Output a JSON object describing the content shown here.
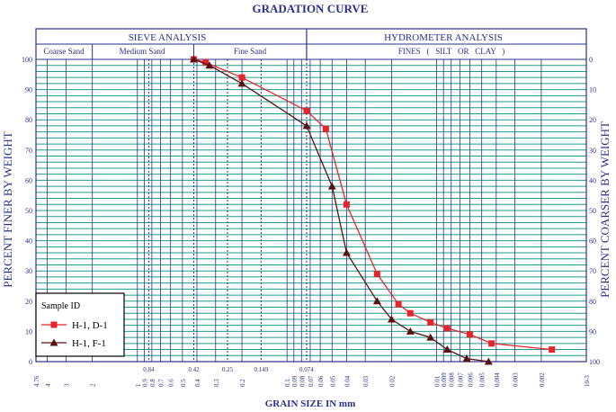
{
  "chart_data": {
    "type": "line",
    "title": "GRADATION CURVE",
    "xlabel": "GRAIN SIZE IN mm",
    "ylabel": "PERCENT FINER BY WEIGHT",
    "ylabel_right": "PERCENT COARSER BY WEIGHT",
    "x_scale": "log",
    "x_reversed": true,
    "xlim": [
      4.76,
      0.001
    ],
    "ylim": [
      0,
      100
    ],
    "grid": true,
    "legend_position": "bottom-left",
    "legend_title": "Sample ID",
    "header": {
      "sieve_title": "SIEVE ANALYSIS",
      "hydrometer_title": "HYDROMETER ANALYSIS",
      "coarse_sand": "Coarse Sand",
      "medium_sand": "Medium Sand",
      "fine_sand": "Fine Sand",
      "fines": "FINES   (   SILT   OR   CLAY   )"
    },
    "x_tick_labels": [
      "4.76",
      "4",
      "3",
      "2",
      "1",
      "0.9",
      "0.8",
      "0.7",
      "0.6",
      "0.5",
      "0.4",
      "0.3",
      "0.2",
      "0.1",
      "0.09",
      "0.08",
      "0.07",
      "0.06",
      "0.05",
      "0.04",
      "0.03",
      "0.02",
      "0.01",
      "0.009",
      "0.008",
      "0.007",
      "0.006",
      "0.005",
      "0.004",
      "0.003",
      "0.002",
      "10-3"
    ],
    "x_highlight_labels": [
      "0.84",
      "0.42",
      "0.25",
      "0.149",
      "0.074"
    ],
    "y_ticks_left": [
      0,
      10,
      20,
      30,
      40,
      50,
      60,
      70,
      80,
      90,
      100
    ],
    "y_ticks_right": [
      0,
      10,
      20,
      30,
      40,
      50,
      60,
      70,
      80,
      90,
      100
    ],
    "series": [
      {
        "name": "H-1, D-1",
        "color": "#e8232b",
        "marker": "square",
        "x": [
          0.42,
          0.35,
          0.2,
          0.074,
          0.055,
          0.04,
          0.025,
          0.018,
          0.015,
          0.011,
          0.0085,
          0.006,
          0.0043,
          0.0017
        ],
        "y": [
          100,
          99,
          94,
          83,
          77,
          52,
          29,
          19,
          16,
          13,
          11,
          9,
          6,
          4
        ]
      },
      {
        "name": "H-1, F-1",
        "color": "#5a1010",
        "marker": "triangle",
        "x": [
          0.42,
          0.33,
          0.2,
          0.074,
          0.05,
          0.04,
          0.025,
          0.02,
          0.015,
          0.011,
          0.0085,
          0.0063,
          0.0045
        ],
        "y": [
          100,
          98,
          92,
          78,
          58,
          36,
          20,
          14,
          10,
          8,
          4,
          1,
          0
        ]
      }
    ]
  }
}
